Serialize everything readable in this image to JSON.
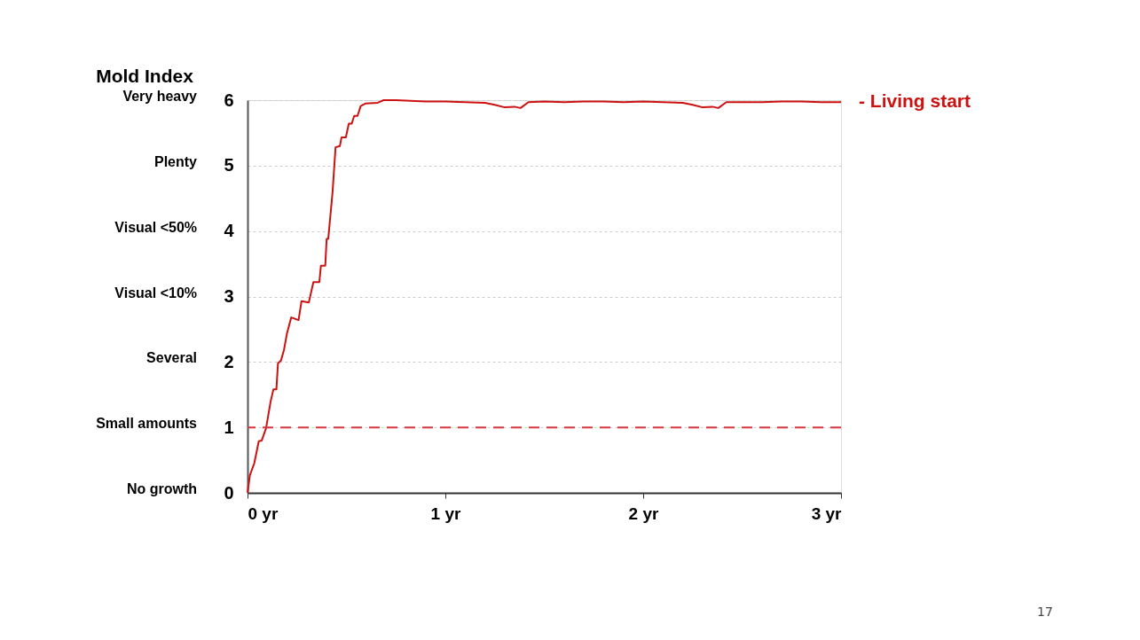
{
  "chart_data": {
    "type": "line",
    "title": "Mold Index",
    "x": [
      0,
      0.012,
      0.034,
      0.057,
      0.072,
      0.094,
      0.117,
      0.131,
      0.146,
      0.154,
      0.169,
      0.184,
      0.199,
      0.221,
      0.258,
      0.273,
      0.31,
      0.333,
      0.363,
      0.371,
      0.393,
      0.4,
      0.408,
      0.43,
      0.445,
      0.467,
      0.475,
      0.497,
      0.512,
      0.527,
      0.539,
      0.556,
      0.572,
      0.598,
      0.658,
      0.688,
      0.75,
      0.9,
      1.0,
      1.1,
      1.2,
      1.25,
      1.3,
      1.35,
      1.38,
      1.42,
      1.5,
      1.6,
      1.7,
      1.8,
      1.9,
      2.0,
      2.1,
      2.2,
      2.25,
      2.3,
      2.35,
      2.38,
      2.42,
      2.5,
      2.6,
      2.7,
      2.8,
      2.9,
      3.0
    ],
    "series": [
      {
        "name": "- Living start",
        "color": "#cc1111",
        "values": [
          0,
          0.27,
          0.45,
          0.79,
          0.8,
          0.99,
          1.4,
          1.58,
          1.58,
          1.98,
          2.02,
          2.18,
          2.43,
          2.68,
          2.64,
          2.93,
          2.91,
          3.22,
          3.22,
          3.47,
          3.47,
          3.88,
          3.88,
          4.6,
          5.28,
          5.3,
          5.43,
          5.43,
          5.64,
          5.64,
          5.76,
          5.76,
          5.91,
          5.95,
          5.96,
          6.0,
          6.0,
          5.98,
          5.98,
          5.97,
          5.96,
          5.93,
          5.89,
          5.9,
          5.88,
          5.97,
          5.98,
          5.97,
          5.98,
          5.98,
          5.97,
          5.98,
          5.97,
          5.96,
          5.93,
          5.89,
          5.9,
          5.88,
          5.97,
          5.97,
          5.97,
          5.98,
          5.98,
          5.97,
          5.97
        ]
      }
    ],
    "xlim": [
      0,
      3
    ],
    "xticks": [
      {
        "value": 0,
        "label": "0 yr"
      },
      {
        "value": 1,
        "label": "1 yr"
      },
      {
        "value": 2,
        "label": "2 yr"
      },
      {
        "value": 3,
        "label": "3 yr"
      }
    ],
    "ylim": [
      0,
      6
    ],
    "yticks": [
      0,
      1,
      2,
      3,
      4,
      5,
      6
    ],
    "ref_lines": [
      {
        "axis": "y",
        "value": 1,
        "color": "#d9363e",
        "line_style": "dashed"
      }
    ],
    "annotations": [
      "No growth",
      "Small amounts",
      "Several",
      "Visual <10%",
      "Visual <50%",
      "Plenty",
      "Very heavy",
      "17"
    ],
    "grid": "y",
    "legend": false,
    "marker": "none",
    "line_style": "solid"
  }
}
